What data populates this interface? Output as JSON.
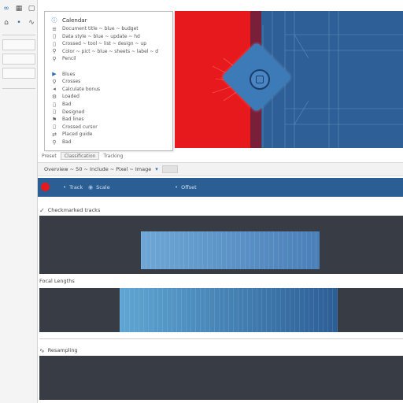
{
  "toolbar_icons": [
    {
      "name": "link-icon",
      "glyph": "∞"
    },
    {
      "name": "grid-icon",
      "glyph": "▦"
    },
    {
      "name": "box-icon",
      "glyph": "▢"
    },
    {
      "name": "tag-icon",
      "glyph": "⌂"
    },
    {
      "name": "dot-icon",
      "glyph": "•"
    },
    {
      "name": "curve-icon",
      "glyph": "∿"
    }
  ],
  "list_panel": {
    "title": "Calendar",
    "items": [
      {
        "icon": "list-icon",
        "glyph": "≡",
        "text": "Document title ~ blue ~ budget"
      },
      {
        "icon": "doc-icon",
        "glyph": "▯",
        "text": "Data style ~ blue ~ update ~ hd"
      },
      {
        "icon": "doc-icon",
        "glyph": "▯",
        "text": "Crossed ~ tool ~ list ~ design ~ up"
      },
      {
        "icon": "pin-icon",
        "glyph": "⚲",
        "text": "Color ~ pict ~ blue ~ sheets ~ label ~ d"
      },
      {
        "icon": "pin-icon",
        "glyph": "⚲",
        "text": "Pencil"
      },
      {
        "icon": "gap",
        "glyph": "",
        "text": ""
      },
      {
        "icon": "play-icon",
        "glyph": "▶",
        "text": "Blues"
      },
      {
        "icon": "pin-icon",
        "glyph": "⚲",
        "text": "Crosses"
      },
      {
        "icon": "speaker-icon",
        "glyph": "◂",
        "text": "Calculate bonus"
      },
      {
        "icon": "gear-icon",
        "glyph": "⚙",
        "text": "Loaded"
      },
      {
        "icon": "doc-icon",
        "glyph": "▯",
        "text": "Bad"
      },
      {
        "icon": "doc-icon",
        "glyph": "▯",
        "text": "Designed"
      },
      {
        "icon": "flag-icon",
        "glyph": "⚑",
        "text": "Bad lines"
      },
      {
        "icon": "doc-icon",
        "glyph": "▯",
        "text": "Crossed cursor"
      },
      {
        "icon": "shuffle-icon",
        "glyph": "⇄",
        "text": "Placed guide"
      },
      {
        "icon": "pin-icon",
        "glyph": "⚲",
        "text": "Bad"
      }
    ]
  },
  "tabs": [
    {
      "label": "Preset",
      "selected": false
    },
    {
      "label": "Classification",
      "selected": true
    },
    {
      "label": "Tracking",
      "selected": false
    }
  ],
  "tool_strip": {
    "text": "Overview ~ 50 ~ Include ~ Pixel ~ Image",
    "icon": "chevron-down-icon"
  },
  "header_bar": {
    "item_1": "Track",
    "item_2": "Scale",
    "item_3": "Offset"
  },
  "tracks": [
    {
      "label": "Checkmarked tracks",
      "icon": "check-icon",
      "glyph": "✓",
      "clip": {
        "start": 0.28,
        "end": 0.77,
        "color_from": "#6ea7d6",
        "color_to": "#4a7fb8"
      }
    },
    {
      "label": "Focal Lengths",
      "icon": "none",
      "glyph": "",
      "clip": {
        "start": 0.22,
        "end": 0.82,
        "color_from": "#5fa6d4",
        "color_to": "#2c5e95"
      }
    },
    {
      "label": "Resampling",
      "icon": "wave-icon",
      "glyph": "∿",
      "clip": null
    }
  ],
  "colors": {
    "accent_red": "#e8191c",
    "accent_blue": "#2b5e93",
    "track_bg": "#383d45"
  }
}
